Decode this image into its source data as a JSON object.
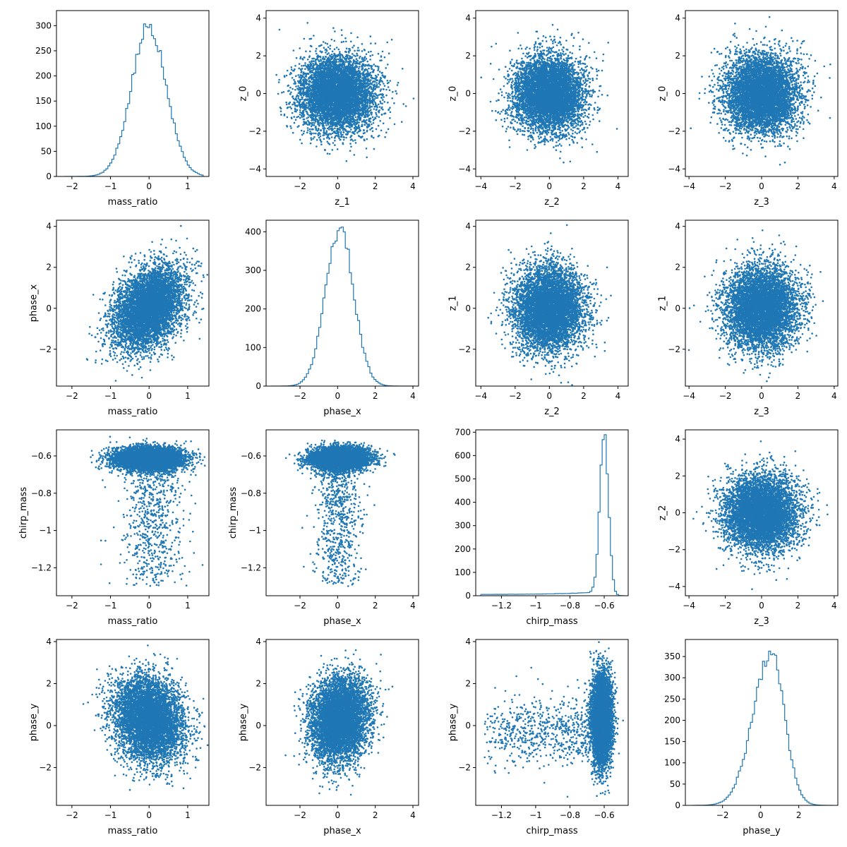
{
  "figure": {
    "style": {
      "accent": "#1f77b4",
      "axis": "#000000",
      "background": "#ffffff"
    }
  },
  "chart_data": [
    {
      "type": "histogram",
      "row": 0,
      "col": 0,
      "xlabel": "mass_ratio",
      "ylabel": "",
      "xlim": [
        -2.4,
        1.55
      ],
      "ylim": [
        0,
        330
      ],
      "xticks": [
        -2,
        -1,
        0,
        1
      ],
      "yticks": [
        0,
        50,
        100,
        150,
        200,
        250,
        300
      ],
      "dist": {
        "mu": 0.0,
        "sigma": 0.45,
        "peak": 300,
        "skew": 0,
        "tail": 0.0,
        "range": [
          -2.2,
          1.4
        ]
      }
    },
    {
      "type": "scatter",
      "row": 0,
      "col": 1,
      "xlabel": "z_1",
      "ylabel": "z_0",
      "xlim": [
        -3.8,
        4.3
      ],
      "ylim": [
        -4.4,
        4.4
      ],
      "xticks": [
        -2,
        0,
        2,
        4
      ],
      "yticks": [
        -4,
        -2,
        0,
        2,
        4
      ],
      "cloud": {
        "xmu": 0,
        "xsd": 1,
        "ymu": 0,
        "ysd": 1,
        "corr": 0,
        "seed": 11,
        "n": 6000
      }
    },
    {
      "type": "scatter",
      "row": 0,
      "col": 2,
      "xlabel": "z_2",
      "ylabel": "z_0",
      "xlim": [
        -4.3,
        4.6
      ],
      "ylim": [
        -4.4,
        4.4
      ],
      "xticks": [
        -4,
        -2,
        0,
        2,
        4
      ],
      "yticks": [
        -4,
        -2,
        0,
        2,
        4
      ],
      "cloud": {
        "xmu": 0,
        "xsd": 1,
        "ymu": 0,
        "ysd": 1,
        "corr": 0,
        "seed": 12,
        "n": 6000
      }
    },
    {
      "type": "scatter",
      "row": 0,
      "col": 3,
      "xlabel": "z_3",
      "ylabel": "z_0",
      "xlim": [
        -4.2,
        4.2
      ],
      "ylim": [
        -4.4,
        4.4
      ],
      "xticks": [
        -4,
        -2,
        0,
        2,
        4
      ],
      "yticks": [
        -4,
        -2,
        0,
        2,
        4
      ],
      "cloud": {
        "xmu": 0,
        "xsd": 1,
        "ymu": 0,
        "ysd": 1,
        "corr": 0,
        "seed": 13,
        "n": 6000
      }
    },
    {
      "type": "scatter",
      "row": 1,
      "col": 0,
      "xlabel": "mass_ratio",
      "ylabel": "phase_x",
      "xlim": [
        -2.4,
        1.55
      ],
      "ylim": [
        -3.8,
        4.3
      ],
      "xticks": [
        -2,
        -1,
        0,
        1
      ],
      "yticks": [
        -2,
        0,
        2,
        4
      ],
      "cloud": {
        "xmu": 0,
        "xsd": 0.45,
        "ymu": 0,
        "ysd": 1,
        "corr": 0.35,
        "seed": 21,
        "n": 6000
      }
    },
    {
      "type": "histogram",
      "row": 1,
      "col": 1,
      "xlabel": "phase_x",
      "ylabel": "",
      "xlim": [
        -3.8,
        4.3
      ],
      "ylim": [
        0,
        430
      ],
      "xticks": [
        -2,
        0,
        2,
        4
      ],
      "yticks": [
        0,
        100,
        200,
        300,
        400
      ],
      "dist": {
        "mu": 0.1,
        "sigma": 0.75,
        "peak": 410,
        "skew": 0,
        "tail": 0.0,
        "range": [
          -3.5,
          4.1
        ]
      }
    },
    {
      "type": "scatter",
      "row": 1,
      "col": 2,
      "xlabel": "z_2",
      "ylabel": "z_1",
      "xlim": [
        -4.3,
        4.6
      ],
      "ylim": [
        -3.8,
        4.3
      ],
      "xticks": [
        -4,
        -2,
        0,
        2,
        4
      ],
      "yticks": [
        -2,
        0,
        2,
        4
      ],
      "cloud": {
        "xmu": 0,
        "xsd": 1,
        "ymu": 0,
        "ysd": 1,
        "corr": 0,
        "seed": 22,
        "n": 6000
      }
    },
    {
      "type": "scatter",
      "row": 1,
      "col": 3,
      "xlabel": "z_3",
      "ylabel": "z_1",
      "xlim": [
        -4.2,
        4.2
      ],
      "ylim": [
        -3.8,
        4.3
      ],
      "xticks": [
        -4,
        -2,
        0,
        2,
        4
      ],
      "yticks": [
        -2,
        0,
        2,
        4
      ],
      "cloud": {
        "xmu": 0,
        "xsd": 1,
        "ymu": 0,
        "ysd": 1,
        "corr": 0,
        "seed": 23,
        "n": 6000
      }
    },
    {
      "type": "scatter",
      "row": 2,
      "col": 0,
      "xlabel": "mass_ratio",
      "ylabel": "chirp_mass",
      "xlim": [
        -2.4,
        1.55
      ],
      "ylim": [
        -1.35,
        -0.46
      ],
      "xticks": [
        -2,
        -1,
        0,
        1
      ],
      "yticks": [
        -1.2,
        -1.0,
        -0.8,
        -0.6
      ],
      "cloud": {
        "xmu": 0,
        "xsd": 0.45,
        "ymu": -0.615,
        "ysd": 0.03,
        "corr": 0,
        "seed": 31,
        "n": 5500,
        "tail": {
          "n": 700,
          "ymin": -1.3,
          "ymax": -0.64,
          "xsd": 0.4,
          "xshift": 0.1
        }
      }
    },
    {
      "type": "scatter",
      "row": 2,
      "col": 1,
      "xlabel": "phase_x",
      "ylabel": "chirp_mass",
      "xlim": [
        -3.8,
        4.3
      ],
      "ylim": [
        -1.35,
        -0.46
      ],
      "xticks": [
        -2,
        0,
        2,
        4
      ],
      "yticks": [
        -1.2,
        -1.0,
        -0.8,
        -0.6
      ],
      "cloud": {
        "xmu": 0.1,
        "xsd": 0.75,
        "ymu": -0.615,
        "ysd": 0.03,
        "corr": 0,
        "seed": 32,
        "n": 5500,
        "tail": {
          "n": 700,
          "ymin": -1.3,
          "ymax": -0.64,
          "xsd": 0.6,
          "xshift": 0.0
        }
      }
    },
    {
      "type": "histogram",
      "row": 2,
      "col": 2,
      "xlabel": "chirp_mass",
      "ylabel": "",
      "xlim": [
        -1.35,
        -0.46
      ],
      "ylim": [
        0,
        710
      ],
      "xticks": [
        -1.2,
        -1.0,
        -0.8,
        -0.6
      ],
      "yticks": [
        0,
        100,
        200,
        300,
        400,
        500,
        600,
        700
      ],
      "dist": {
        "mu": -0.6,
        "sigma": 0.025,
        "peak": 670,
        "skew": 0,
        "tail": 12,
        "range": [
          -1.32,
          -0.48
        ]
      }
    },
    {
      "type": "scatter",
      "row": 2,
      "col": 3,
      "xlabel": "z_3",
      "ylabel": "z_2",
      "xlim": [
        -4.2,
        4.2
      ],
      "ylim": [
        -4.5,
        4.5
      ],
      "xticks": [
        -4,
        -2,
        0,
        2,
        4
      ],
      "yticks": [
        -4,
        -2,
        0,
        2,
        4
      ],
      "cloud": {
        "xmu": 0,
        "xsd": 1,
        "ymu": 0,
        "ysd": 1,
        "corr": 0,
        "seed": 33,
        "n": 6000
      }
    },
    {
      "type": "scatter",
      "row": 3,
      "col": 0,
      "xlabel": "mass_ratio",
      "ylabel": "phase_y",
      "xlim": [
        -2.4,
        1.55
      ],
      "ylim": [
        -3.8,
        4.1
      ],
      "xticks": [
        -2,
        -1,
        0,
        1
      ],
      "yticks": [
        -2,
        0,
        2,
        4
      ],
      "cloud": {
        "xmu": 0,
        "xsd": 0.45,
        "ymu": 0.3,
        "ysd": 1.0,
        "corr": -0.15,
        "seed": 41,
        "n": 6000
      }
    },
    {
      "type": "scatter",
      "row": 3,
      "col": 1,
      "xlabel": "phase_x",
      "ylabel": "phase_y",
      "xlim": [
        -3.8,
        4.3
      ],
      "ylim": [
        -3.8,
        4.1
      ],
      "xticks": [
        -2,
        0,
        2,
        4
      ],
      "yticks": [
        -2,
        0,
        2,
        4
      ],
      "cloud": {
        "xmu": 0.1,
        "xsd": 0.75,
        "ymu": 0.3,
        "ysd": 1.0,
        "corr": 0.1,
        "seed": 42,
        "n": 6000
      }
    },
    {
      "type": "scatter",
      "row": 3,
      "col": 2,
      "xlabel": "chirp_mass",
      "ylabel": "phase_y",
      "xlim": [
        -1.35,
        -0.46
      ],
      "ylim": [
        -3.8,
        4.1
      ],
      "xticks": [
        -1.2,
        -1.0,
        -0.8,
        -0.6
      ],
      "yticks": [
        -2,
        0,
        2,
        4
      ],
      "cloud": {
        "xmu": -0.615,
        "xsd": 0.03,
        "ymu": 0.3,
        "ysd": 1.1,
        "corr": 0,
        "seed": 43,
        "n": 5500,
        "tail": {
          "n": 700,
          "xmin": -1.3,
          "xmax": -0.64,
          "ysd": 0.8,
          "yshift": -0.3,
          "axis": "x"
        }
      }
    },
    {
      "type": "histogram",
      "row": 3,
      "col": 3,
      "xlabel": "phase_y",
      "ylabel": "",
      "xlim": [
        -3.95,
        4.05
      ],
      "ylim": [
        0,
        390
      ],
      "xticks": [
        -2,
        0,
        2
      ],
      "yticks": [
        0,
        50,
        100,
        150,
        200,
        250,
        300,
        350
      ],
      "dist": {
        "mu": 0.55,
        "sigma": 0.7,
        "peak": 355,
        "skew": -1.2,
        "tail": 0.0,
        "range": [
          -3.6,
          3.8
        ]
      }
    }
  ]
}
